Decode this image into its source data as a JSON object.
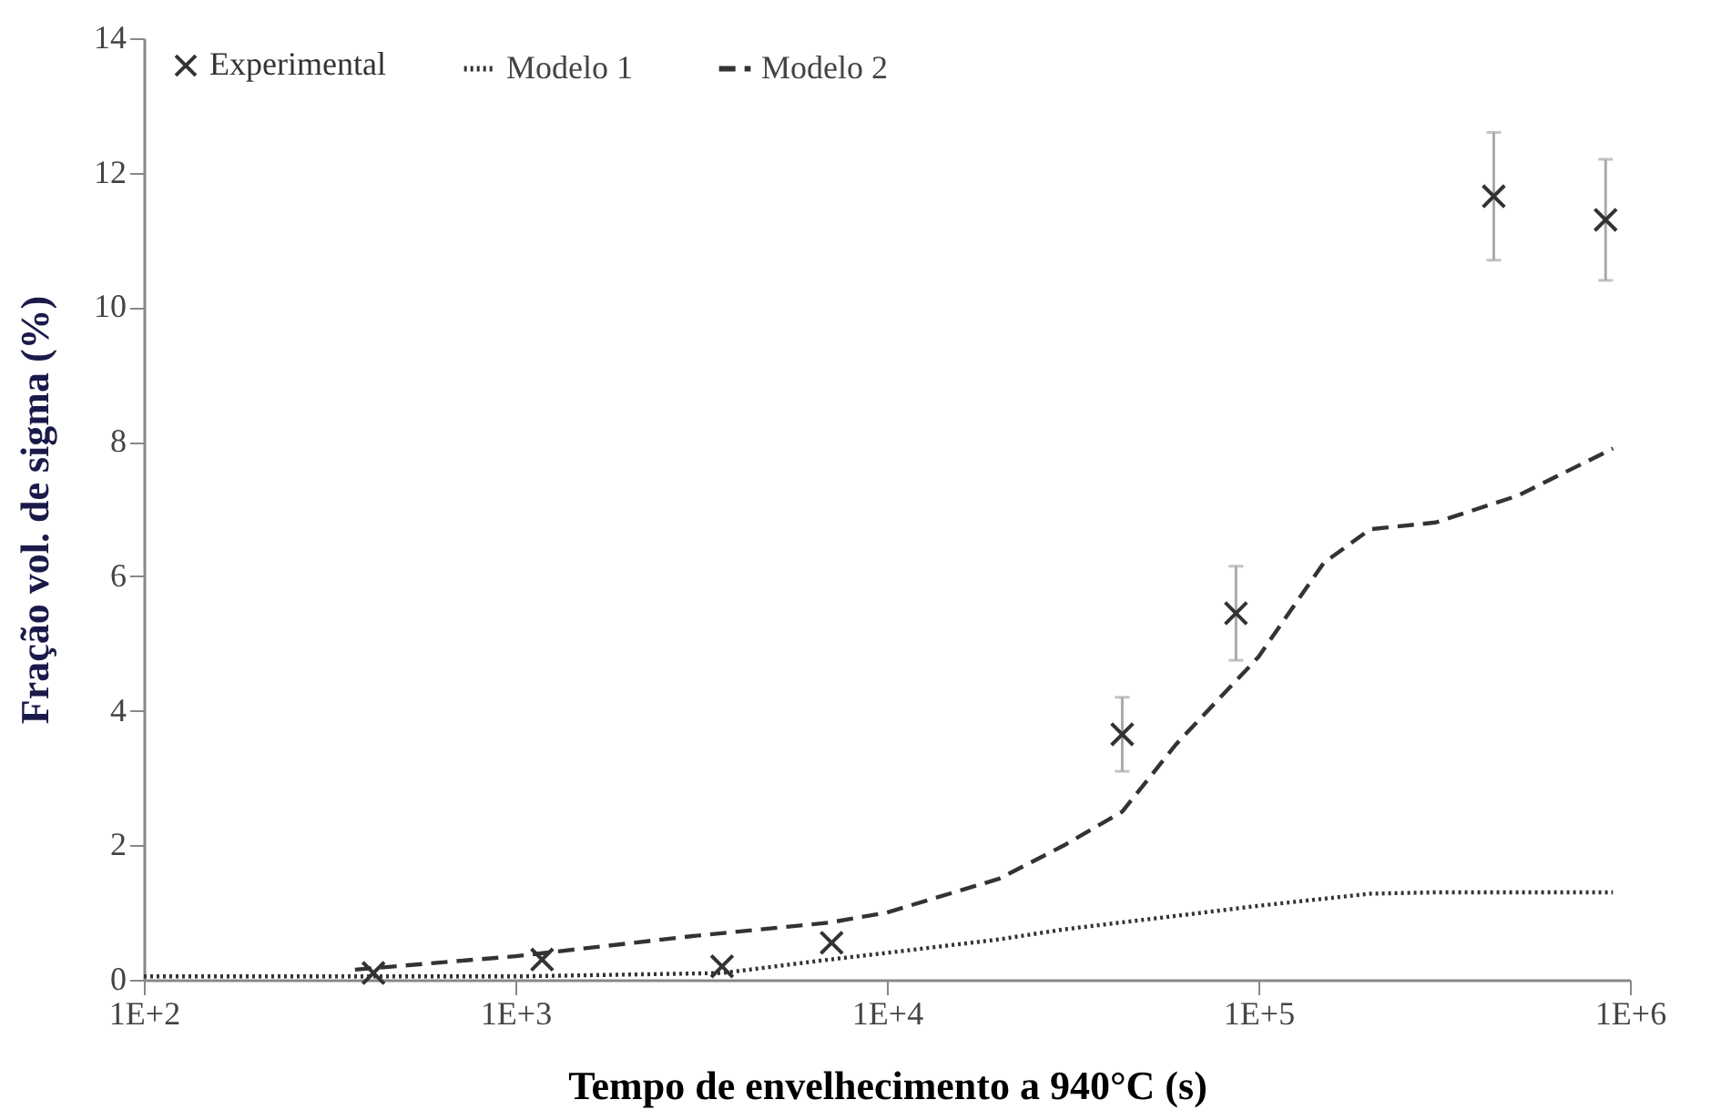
{
  "chart_data": {
    "type": "scatter",
    "xlabel": "Tempo de envelhecimento a 940°C (s)",
    "ylabel": "Fração vol. de sigma (%)",
    "log": "x",
    "xlim": [
      100,
      1000000
    ],
    "xticks": [
      {
        "value": 100,
        "label": "1E+2"
      },
      {
        "value": 1000,
        "label": "1E+3"
      },
      {
        "value": 10000,
        "label": "1E+4"
      },
      {
        "value": 100000,
        "label": "1E+5"
      },
      {
        "value": 1000000,
        "label": "1E+6"
      }
    ],
    "ylim": [
      0,
      14
    ],
    "yticks": [
      0,
      2,
      4,
      6,
      8,
      10,
      12,
      14
    ],
    "grid": false,
    "legend": "top left",
    "series": [
      {
        "name": "Experimental",
        "type": "scatter",
        "marker": "cross",
        "color": "#333333",
        "x": [
          415,
          1180,
          3600,
          7100,
          43000,
          87000,
          430000,
          860000
        ],
        "values": [
          0.1,
          0.3,
          0.2,
          0.55,
          3.65,
          5.45,
          11.65,
          11.3
        ],
        "errors": [
          null,
          null,
          null,
          null,
          0.55,
          0.7,
          0.95,
          0.9
        ]
      },
      {
        "name": "Modelo 1",
        "type": "line",
        "line_style": "dotted",
        "color": "#333333",
        "x": [
          100,
          1000,
          3600,
          7000,
          10000,
          20000,
          30000,
          60000,
          100000,
          200000,
          300000,
          900000
        ],
        "values": [
          0.05,
          0.05,
          0.1,
          0.3,
          0.4,
          0.6,
          0.75,
          0.95,
          1.1,
          1.28,
          1.3,
          1.3
        ]
      },
      {
        "name": "Modelo 2",
        "type": "line",
        "line_style": "dashed",
        "color": "#333333",
        "x": [
          370,
          1000,
          3000,
          7000,
          10000,
          20000,
          30000,
          43000,
          60000,
          100000,
          150000,
          200000,
          300000,
          500000,
          900000
        ],
        "values": [
          0.15,
          0.35,
          0.65,
          0.85,
          1.0,
          1.5,
          2.0,
          2.5,
          3.5,
          4.8,
          6.2,
          6.7,
          6.8,
          7.2,
          7.9
        ]
      }
    ]
  }
}
